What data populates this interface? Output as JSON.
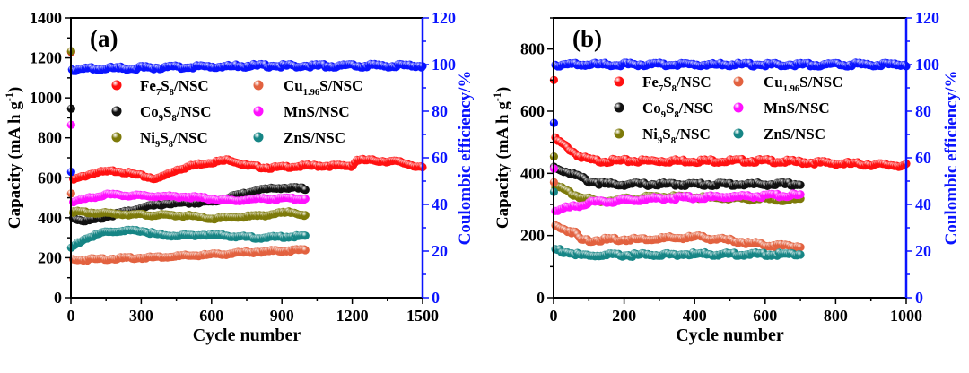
{
  "chart_data": [
    {
      "type": "scatter",
      "panel_label": "(a)",
      "xlabel": "Cycle number",
      "ylabel": "Capacity (mA h g-1)",
      "y2label": "Coulombic efficiency/%",
      "xlim": [
        0,
        1500
      ],
      "ylim": [
        0,
        1400
      ],
      "y2lim": [
        0,
        120
      ],
      "xticks": [
        0,
        300,
        600,
        900,
        1200,
        1500
      ],
      "yticks": [
        0,
        200,
        400,
        600,
        800,
        1000,
        1200,
        1400
      ],
      "y2ticks": [
        0,
        20,
        40,
        60,
        80,
        100,
        120
      ],
      "legend_placement": "top-center",
      "grid": false,
      "series": [
        {
          "name": "Fe7S8/NSC",
          "color": "#ff1010",
          "axis": "left",
          "points": [
            [
              1,
              1230
            ],
            [
              10,
              590
            ],
            [
              100,
              625
            ],
            [
              200,
              635
            ],
            [
              300,
              610
            ],
            [
              370,
              595
            ],
            [
              450,
              640
            ],
            [
              550,
              670
            ],
            [
              680,
              690
            ],
            [
              750,
              660
            ],
            [
              850,
              650
            ],
            [
              1000,
              660
            ],
            [
              1200,
              660
            ],
            [
              1220,
              690
            ],
            [
              1400,
              680
            ],
            [
              1500,
              650
            ]
          ]
        },
        {
          "name": "Co9S8/NSC",
          "color": "#111111",
          "axis": "left",
          "points": [
            [
              1,
              945
            ],
            [
              10,
              400
            ],
            [
              50,
              385
            ],
            [
              100,
              390
            ],
            [
              200,
              420
            ],
            [
              300,
              450
            ],
            [
              400,
              470
            ],
            [
              500,
              475
            ],
            [
              600,
              480
            ],
            [
              700,
              510
            ],
            [
              800,
              540
            ],
            [
              900,
              550
            ],
            [
              1000,
              545
            ]
          ]
        },
        {
          "name": "Ni9S8/NSC",
          "color": "#7d7a0a",
          "axis": "left",
          "points": [
            [
              1,
              1240
            ],
            [
              10,
              430
            ],
            [
              100,
              425
            ],
            [
              300,
              415
            ],
            [
              500,
              410
            ],
            [
              600,
              395
            ],
            [
              800,
              410
            ],
            [
              950,
              430
            ],
            [
              1000,
              410
            ]
          ]
        },
        {
          "name": "Cu1.96S/NSC",
          "color": "#e2613f",
          "axis": "left",
          "points": [
            [
              1,
              520
            ],
            [
              10,
              190
            ],
            [
              300,
              200
            ],
            [
              600,
              215
            ],
            [
              800,
              230
            ],
            [
              1000,
              240
            ]
          ]
        },
        {
          "name": "MnS/NSC",
          "color": "#ff10ff",
          "axis": "left",
          "points": [
            [
              1,
              870
            ],
            [
              10,
              480
            ],
            [
              100,
              505
            ],
            [
              150,
              515
            ],
            [
              300,
              510
            ],
            [
              500,
              505
            ],
            [
              700,
              485
            ],
            [
              800,
              495
            ],
            [
              1000,
              495
            ]
          ]
        },
        {
          "name": "ZnS/NSC",
          "color": "#168585",
          "axis": "left",
          "points": [
            [
              1,
              250
            ],
            [
              50,
              290
            ],
            [
              150,
              330
            ],
            [
              300,
              335
            ],
            [
              400,
              310
            ],
            [
              600,
              315
            ],
            [
              800,
              300
            ],
            [
              1000,
              310
            ]
          ]
        },
        {
          "name": "",
          "color": "#0a14ff",
          "axis": "right",
          "points": [
            [
              1,
              54
            ],
            [
              5,
              98
            ],
            [
              800,
              99.5
            ],
            [
              1500,
              99.5
            ]
          ]
        }
      ]
    },
    {
      "type": "scatter",
      "panel_label": "(b)",
      "xlabel": "Cycle number",
      "ylabel": "Capacity (mA h g-1)",
      "y2label": "Coulombic efficiency/%",
      "xlim": [
        0,
        1000
      ],
      "ylim": [
        0,
        900
      ],
      "y2lim": [
        0,
        120
      ],
      "xticks": [
        0,
        200,
        400,
        600,
        800,
        1000
      ],
      "yticks": [
        0,
        200,
        400,
        600,
        800
      ],
      "y2ticks": [
        0,
        20,
        40,
        60,
        80,
        100,
        120
      ],
      "legend_placement": "top-center",
      "grid": false,
      "series": [
        {
          "name": "Fe7S8/NSC",
          "color": "#ff1010",
          "axis": "left",
          "points": [
            [
              1,
              700
            ],
            [
              5,
              510
            ],
            [
              30,
              490
            ],
            [
              80,
              450
            ],
            [
              120,
              440
            ],
            [
              400,
              440
            ],
            [
              600,
              440
            ],
            [
              1000,
              425
            ]
          ]
        },
        {
          "name": "Co9S8/NSC",
          "color": "#111111",
          "axis": "left",
          "points": [
            [
              1,
              420
            ],
            [
              50,
              400
            ],
            [
              100,
              375
            ],
            [
              150,
              365
            ],
            [
              700,
              365
            ]
          ]
        },
        {
          "name": "Ni9S8/NSC",
          "color": "#7d7a0a",
          "axis": "left",
          "points": [
            [
              1,
              460
            ],
            [
              5,
              360
            ],
            [
              60,
              330
            ],
            [
              120,
              310
            ],
            [
              300,
              325
            ],
            [
              700,
              315
            ]
          ]
        },
        {
          "name": "Cu1.96S/NSC",
          "color": "#e2613f",
          "axis": "left",
          "points": [
            [
              1,
              370
            ],
            [
              5,
              230
            ],
            [
              60,
              210
            ],
            [
              80,
              185
            ],
            [
              300,
              190
            ],
            [
              420,
              195
            ],
            [
              600,
              170
            ],
            [
              700,
              165
            ]
          ]
        },
        {
          "name": "MnS/NSC",
          "color": "#ff10ff",
          "axis": "left",
          "points": [
            [
              1,
              420
            ],
            [
              5,
              280
            ],
            [
              100,
              305
            ],
            [
              300,
              320
            ],
            [
              700,
              330
            ]
          ]
        },
        {
          "name": "ZnS/NSC",
          "color": "#168585",
          "axis": "left",
          "points": [
            [
              1,
              340
            ],
            [
              5,
              155
            ],
            [
              80,
              135
            ],
            [
              400,
              140
            ],
            [
              700,
              140
            ]
          ]
        },
        {
          "name": "",
          "color": "#0a14ff",
          "axis": "right",
          "points": [
            [
              1,
              75
            ],
            [
              5,
              100
            ],
            [
              1000,
              100
            ]
          ]
        }
      ]
    }
  ]
}
